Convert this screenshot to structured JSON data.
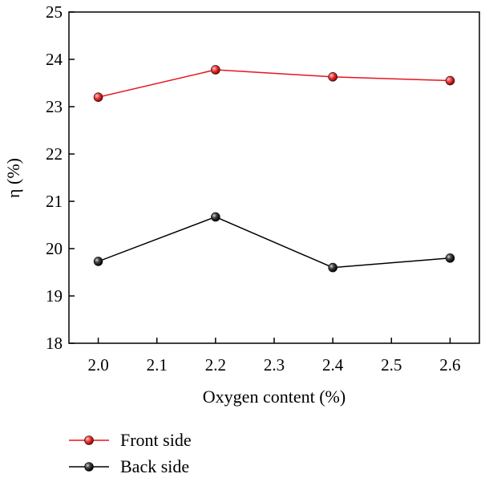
{
  "chart_data": {
    "type": "line",
    "title": "",
    "xlabel": "Oxygen content (%)",
    "ylabel": "η (%)",
    "x": [
      2.0,
      2.2,
      2.4,
      2.6
    ],
    "xlim": [
      1.95,
      2.65
    ],
    "ylim": [
      18,
      25
    ],
    "xticks": [
      "2.0",
      "2.1",
      "2.2",
      "2.3",
      "2.4",
      "2.5",
      "2.6"
    ],
    "yticks": [
      "18",
      "19",
      "20",
      "21",
      "22",
      "23",
      "24",
      "25"
    ],
    "grid": false,
    "legend_position": "bottom-left",
    "series": [
      {
        "name": "Front side",
        "values": [
          23.2,
          23.78,
          23.63,
          23.55
        ],
        "color": "#e8141c"
      },
      {
        "name": "Back side",
        "values": [
          19.73,
          20.67,
          19.6,
          19.8
        ],
        "color": "#000000"
      }
    ]
  }
}
